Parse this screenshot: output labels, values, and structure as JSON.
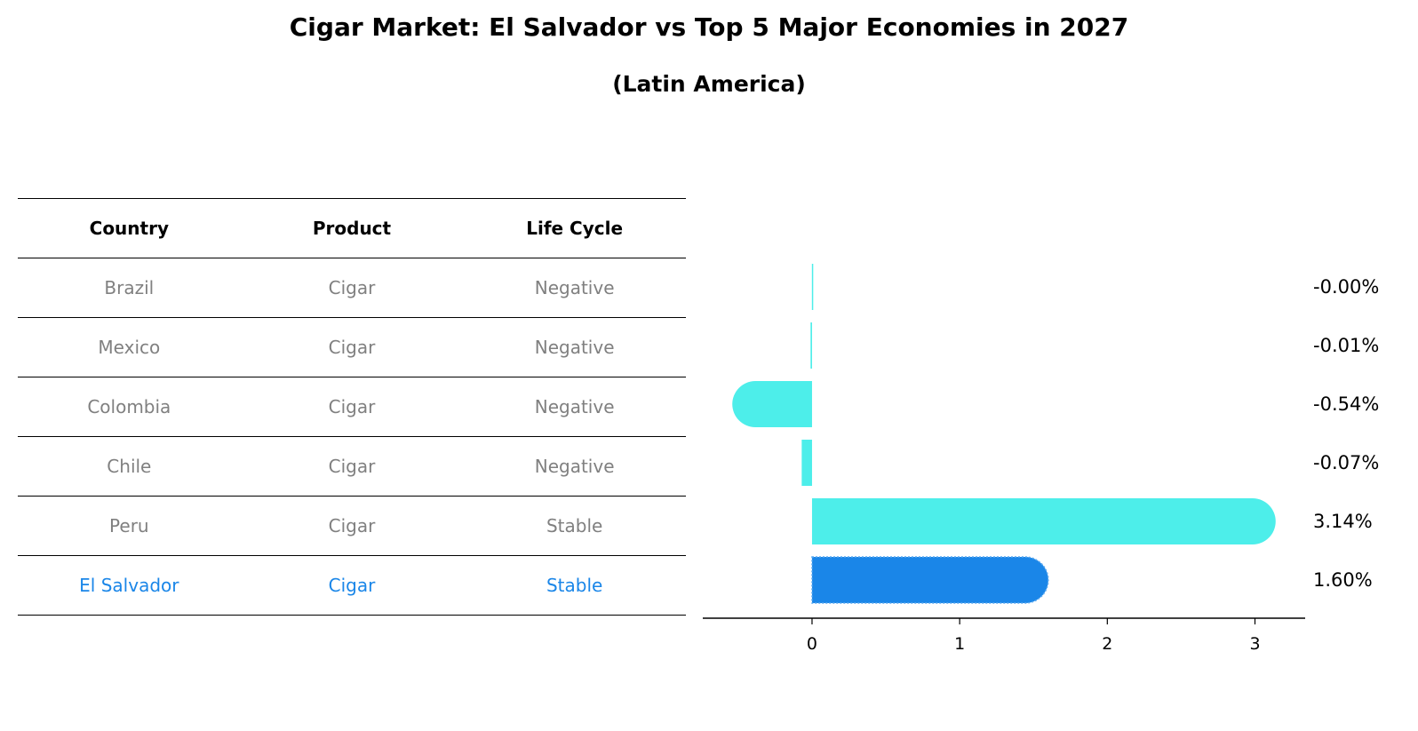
{
  "chart_data": {
    "type": "bar",
    "orientation": "horizontal",
    "title": "Cigar Market: El Salvador vs Top 5 Major Economies in 2027",
    "subtitle": "(Latin America)",
    "table": {
      "headers": [
        "Country",
        "Product",
        "Life Cycle"
      ],
      "rows": [
        {
          "country": "Brazil",
          "product": "Cigar",
          "life_cycle": "Negative"
        },
        {
          "country": "Mexico",
          "product": "Cigar",
          "life_cycle": "Negative"
        },
        {
          "country": "Colombia",
          "product": "Cigar",
          "life_cycle": "Negative"
        },
        {
          "country": "Chile",
          "product": "Cigar",
          "life_cycle": "Negative"
        },
        {
          "country": "Peru",
          "product": "Cigar",
          "life_cycle": "Stable"
        },
        {
          "country": "El Salvador",
          "product": "Cigar",
          "life_cycle": "Stable"
        }
      ]
    },
    "categories": [
      "Brazil",
      "Mexico",
      "Colombia",
      "Chile",
      "Peru",
      "El Salvador"
    ],
    "values": [
      -0.001,
      -0.01,
      -0.54,
      -0.07,
      3.14,
      1.6
    ],
    "value_labels": [
      "-0.00%",
      "-0.01%",
      "-0.54%",
      "-0.07%",
      "3.14%",
      "1.60%"
    ],
    "x_ticks": [
      0,
      1,
      2,
      3
    ],
    "xlim": [
      -0.74,
      3.34
    ],
    "highlight": "El Salvador",
    "colors": {
      "bar": "#4deeea",
      "highlight_bar": "#1a86e8",
      "text_muted": "#808080",
      "text_highlight": "#1a86e8"
    }
  }
}
